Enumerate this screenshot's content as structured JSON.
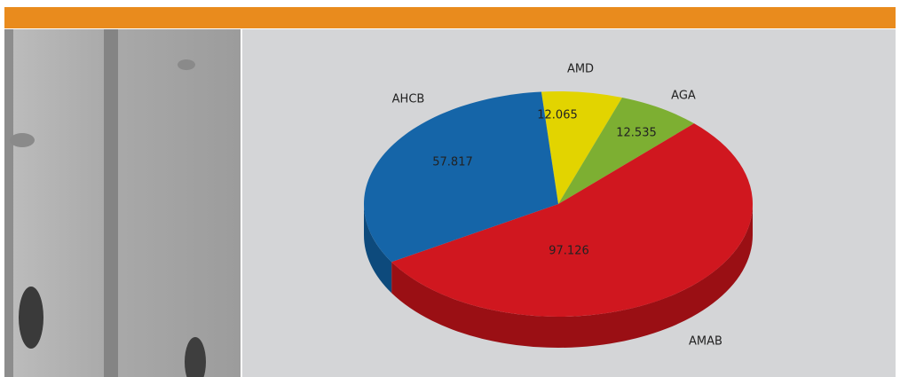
{
  "chart_data": {
    "type": "pie",
    "categories": [
      "AMD",
      "AGA",
      "AMAB",
      "AHCB"
    ],
    "values": [
      12.065,
      12.535,
      97.126,
      57.817
    ],
    "colors": [
      "#e2d400",
      "#7daf32",
      "#d0171f",
      "#1565a8"
    ],
    "side_colors": [
      "#a89e00",
      "#5a8022",
      "#9a0f14",
      "#0d4a7c"
    ]
  }
}
